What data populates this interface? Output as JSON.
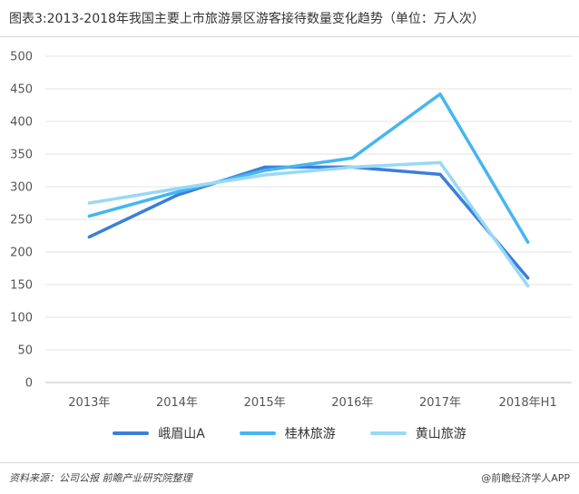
{
  "header": {
    "title": "图表3:2013-2018年我国主要上市旅游景区游客接待数量变化趋势（单位：万人次）"
  },
  "chart_data": {
    "type": "line",
    "title": "图表3:2013-2018年我国主要上市旅游景区游客接待数量变化趋势（单位：万人次）",
    "xlabel": "",
    "ylabel": "",
    "ylim": [
      0,
      500
    ],
    "yticks": [
      0,
      50,
      100,
      150,
      200,
      250,
      300,
      350,
      400,
      450,
      500
    ],
    "categories": [
      "2013年",
      "2014年",
      "2015年",
      "2016年",
      "2017年",
      "2018年H1"
    ],
    "grid": true,
    "legend_position": "bottom",
    "series": [
      {
        "name": "峨眉山A",
        "color": "#3a7fd9",
        "values": [
          223,
          287,
          330,
          330,
          319,
          160
        ]
      },
      {
        "name": "桂林旅游",
        "color": "#45b6f0",
        "values": [
          255,
          292,
          325,
          344,
          442,
          215
        ]
      },
      {
        "name": "黄山旅游",
        "color": "#99d8f7",
        "values": [
          275,
          297,
          318,
          330,
          337,
          148
        ]
      }
    ]
  },
  "footer": {
    "source": "资料来源：公司公报   前瞻产业研究院整理",
    "brand": "@前瞻经济学人APP"
  }
}
